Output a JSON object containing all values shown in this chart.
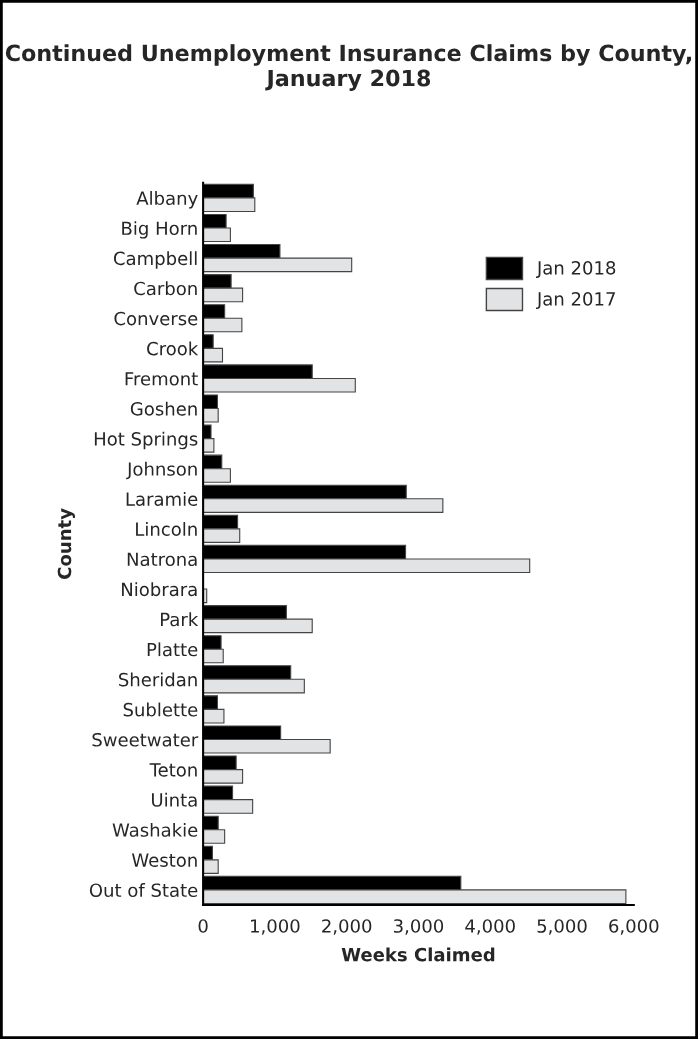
{
  "chart_data": {
    "type": "bar",
    "orientation": "horizontal",
    "title": "Continued Unemployment Insurance Claims by County, January 2018",
    "xlabel": "Weeks Claimed",
    "ylabel": "County",
    "categories": [
      "Albany",
      "Big Horn",
      "Campbell",
      "Carbon",
      "Converse",
      "Crook",
      "Fremont",
      "Goshen",
      "Hot Springs",
      "Johnson",
      "Laramie",
      "Lincoln",
      "Natrona",
      "Niobrara",
      "Park",
      "Platte",
      "Sheridan",
      "Sublette",
      "Sweetwater",
      "Teton",
      "Uinta",
      "Washakie",
      "Weston",
      "Out of State"
    ],
    "series": [
      {
        "name": "Jan 2018",
        "color": "#000000",
        "values": [
          700,
          320,
          1070,
          390,
          300,
          140,
          1520,
          200,
          110,
          260,
          2830,
          480,
          2820,
          null,
          1160,
          250,
          1220,
          200,
          1080,
          460,
          410,
          210,
          130,
          3590
        ]
      },
      {
        "name": "Jan 2017",
        "color": "#e2e3e5",
        "values": [
          720,
          380,
          2070,
          550,
          540,
          270,
          2120,
          210,
          150,
          380,
          3340,
          510,
          4550,
          50,
          1520,
          280,
          1410,
          290,
          1770,
          550,
          690,
          300,
          210,
          5890
        ]
      }
    ],
    "xlim": [
      0,
      6000
    ],
    "xticks": [
      {
        "value": 0,
        "label": "0"
      },
      {
        "value": 1000,
        "label": "1,000"
      },
      {
        "value": 2000,
        "label": "2,000"
      },
      {
        "value": 3000,
        "label": "3,000"
      },
      {
        "value": 4000,
        "label": "4,000"
      },
      {
        "value": 5000,
        "label": "5,000"
      },
      {
        "value": 6000,
        "label": "6,000"
      }
    ],
    "grid": false,
    "legend": "right"
  }
}
